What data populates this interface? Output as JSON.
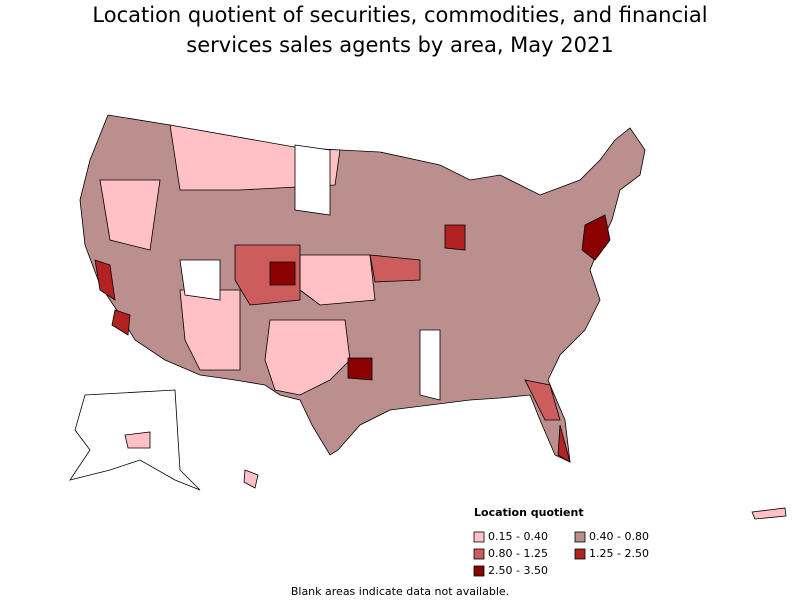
{
  "header": {
    "title_lines": [
      "Location quotient of securities, commodities, and financial",
      "services sales agents by area, May 2021"
    ]
  },
  "legend": {
    "title": "Location quotient",
    "items": [
      {
        "label": "0.15 - 0.40",
        "color": "#ffc0c6"
      },
      {
        "label": "0.40 - 0.80",
        "color": "#bc8f8f"
      },
      {
        "label": "0.80 - 1.25",
        "color": "#cd5c5c"
      },
      {
        "label": "1.25 - 2.50",
        "color": "#b22222"
      },
      {
        "label": "2.50 - 3.50",
        "color": "#8b0000"
      }
    ]
  },
  "note": "Blank areas indicate data not available."
}
